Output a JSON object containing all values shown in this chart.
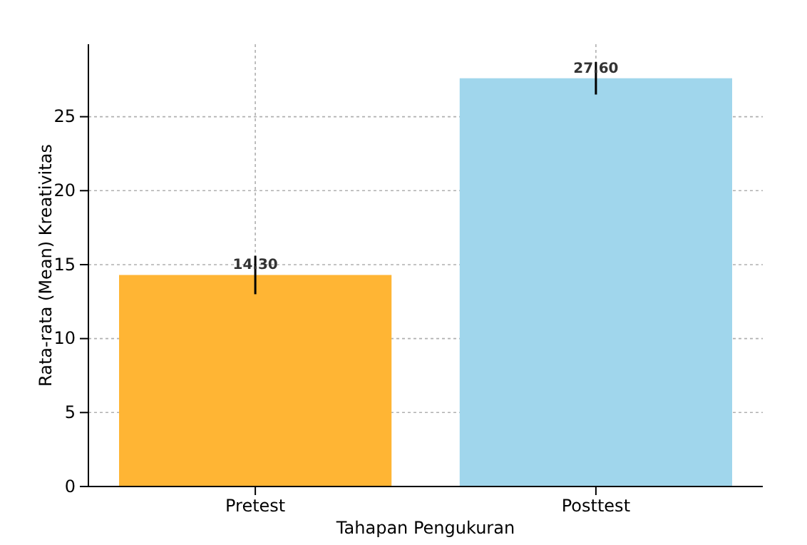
{
  "chart_data": {
    "type": "bar",
    "xlabel": "Tahapan Pengukuran",
    "ylabel": "Rata-rata (Mean) Kreativitas",
    "categories": [
      "Pretest",
      "Posttest"
    ],
    "values": [
      14.3,
      27.6
    ],
    "colors": [
      "#ffb534",
      "#a0d6ec"
    ],
    "errors": [
      1.3,
      1.1
    ],
    "value_labels": [
      "14.30",
      "27.60"
    ],
    "ylim": [
      0,
      29.9
    ],
    "yticks": [
      0,
      5,
      10,
      15,
      20,
      25
    ],
    "grid": true
  }
}
